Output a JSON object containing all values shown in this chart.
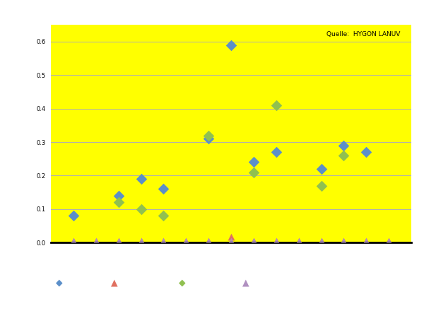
{
  "background_color": "#ffff00",
  "plot_bg_color": "#ffff00",
  "fig_bg_color": "#ffffff",
  "source_text": "Quelle:  HYGON LANUV",
  "source_fontsize": 6.5,
  "ylim": [
    0,
    0.65
  ],
  "yticks": [
    0.0,
    0.1,
    0.2,
    0.3,
    0.4,
    0.5,
    0.6
  ],
  "grid_color": "#b0b0b0",
  "series1_color": "#5b8fc9",
  "series1_marker": "D",
  "series1_x": [
    1,
    3,
    4,
    5,
    7,
    8,
    9,
    10,
    12,
    13,
    14
  ],
  "series1_y": [
    0.08,
    0.14,
    0.19,
    0.16,
    0.31,
    0.59,
    0.24,
    0.27,
    0.22,
    0.29,
    0.27
  ],
  "series2_color": "#e07060",
  "series2_marker": "^",
  "series2_x": [
    1,
    2,
    3,
    4,
    5,
    6,
    7,
    8,
    9,
    10,
    11,
    12,
    13,
    14,
    15
  ],
  "series2_y": [
    0.004,
    0.004,
    0.004,
    0.004,
    0.004,
    0.004,
    0.004,
    0.018,
    0.004,
    0.004,
    0.004,
    0.004,
    0.004,
    0.004,
    0.004
  ],
  "series3_color": "#90c050",
  "series3_marker": "D",
  "series3_x": [
    3,
    4,
    5,
    7,
    9,
    10,
    12,
    13
  ],
  "series3_y": [
    0.12,
    0.1,
    0.08,
    0.32,
    0.21,
    0.41,
    0.17,
    0.26
  ],
  "series4_color": "#b090c0",
  "series4_marker": "^",
  "series4_x": [
    1,
    2,
    3,
    4,
    5,
    6,
    7,
    8,
    9,
    10,
    11,
    12,
    13,
    14,
    15
  ],
  "series4_y": [
    0.004,
    0.004,
    0.004,
    0.004,
    0.004,
    0.004,
    0.004,
    0.004,
    0.004,
    0.004,
    0.004,
    0.004,
    0.004,
    0.004,
    0.004
  ],
  "marker_size": 5,
  "triangle_size": 5,
  "xlim": [
    0,
    16
  ],
  "legend_marker_size": 6
}
